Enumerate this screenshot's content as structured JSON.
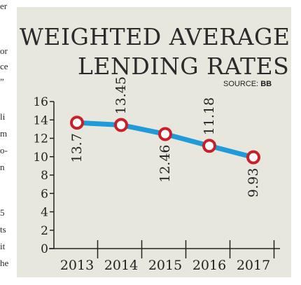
{
  "left_column": [
    "er",
    "or",
    "ce",
    "”",
    "li",
    "m",
    "o-",
    "n",
    "5",
    "ts",
    "it",
    "he"
  ],
  "header": {
    "title_line1": "WEIGHTED AVERAGE",
    "title_line2": "LENDING RATES",
    "source_label": "SOURCE:",
    "source_value": "BB"
  },
  "colors": {
    "panel_bg": "#e8e7dd",
    "line": "#1e9bd8",
    "marker_stroke": "#c8202a",
    "marker_fill": "#ffffff"
  },
  "chart_data": {
    "type": "line",
    "title": "WEIGHTED AVERAGE LENDING RATES",
    "source": "SOURCE: BB",
    "xlabel": "",
    "ylabel": "",
    "categories": [
      "2013",
      "2014",
      "2015",
      "2016",
      "2017"
    ],
    "series": [
      {
        "values": [
          13.7,
          13.45,
          12.46,
          11.18,
          9.93
        ],
        "labels": [
          "13.7",
          "13.45",
          "12.46",
          "11.18",
          "9.93"
        ]
      }
    ],
    "ylim": [
      0,
      16
    ],
    "yticks": [
      0,
      2,
      4,
      6,
      8,
      10,
      12,
      14,
      16
    ],
    "grid": false,
    "legend": "none"
  }
}
